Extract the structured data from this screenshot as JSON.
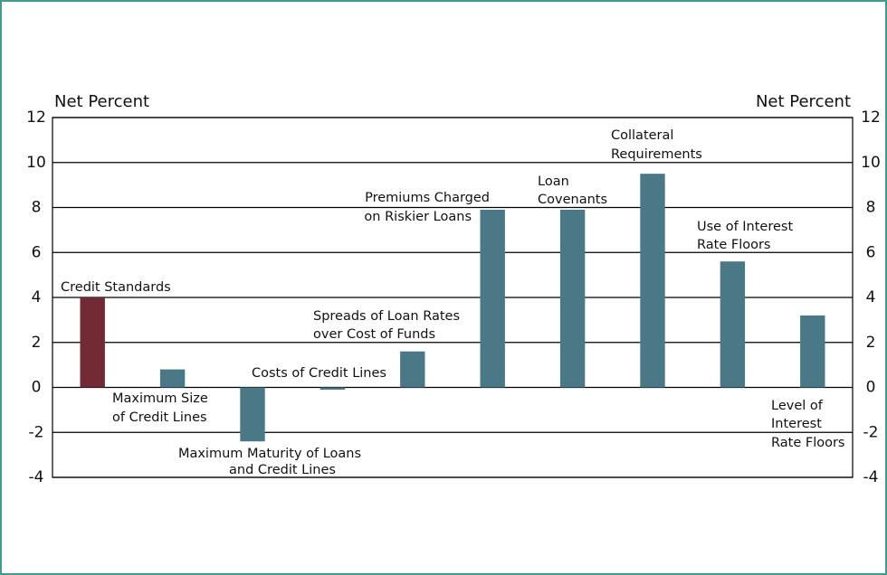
{
  "chart_data": {
    "type": "bar",
    "ylabel": "Net Percent",
    "y2label": "Net Percent",
    "categories": [
      [
        "Credit Standards"
      ],
      [
        "Maximum Size",
        "of Credit Lines"
      ],
      [
        "Maximum Maturity of Loans",
        "and Credit Lines"
      ],
      [
        "Costs of Credit Lines"
      ],
      [
        "Spreads of Loan Rates",
        "over Cost of Funds"
      ],
      [
        "Premiums Charged",
        "on Riskier Loans"
      ],
      [
        "Loan",
        "Covenants"
      ],
      [
        "Collateral",
        "Requirements"
      ],
      [
        "Use of Interest",
        "Rate Floors"
      ],
      [
        "Level of",
        "Interest",
        "Rate Floors"
      ]
    ],
    "values": [
      4.0,
      0.8,
      -2.4,
      -0.1,
      1.6,
      7.9,
      7.9,
      9.5,
      5.6,
      3.2
    ],
    "colors": [
      "#722a35",
      "#4a7886",
      "#4a7886",
      "#4a7886",
      "#4a7886",
      "#4a7886",
      "#4a7886",
      "#4a7886",
      "#4a7886",
      "#4a7886"
    ],
    "ylim": [
      -4,
      12
    ],
    "yticks": [
      -4,
      -2,
      0,
      2,
      4,
      6,
      8,
      10,
      12
    ],
    "y2lim": [
      -4,
      12
    ],
    "y2ticks": [
      -4,
      -2,
      0,
      2,
      4,
      6,
      8,
      10,
      12
    ],
    "grid": true
  }
}
